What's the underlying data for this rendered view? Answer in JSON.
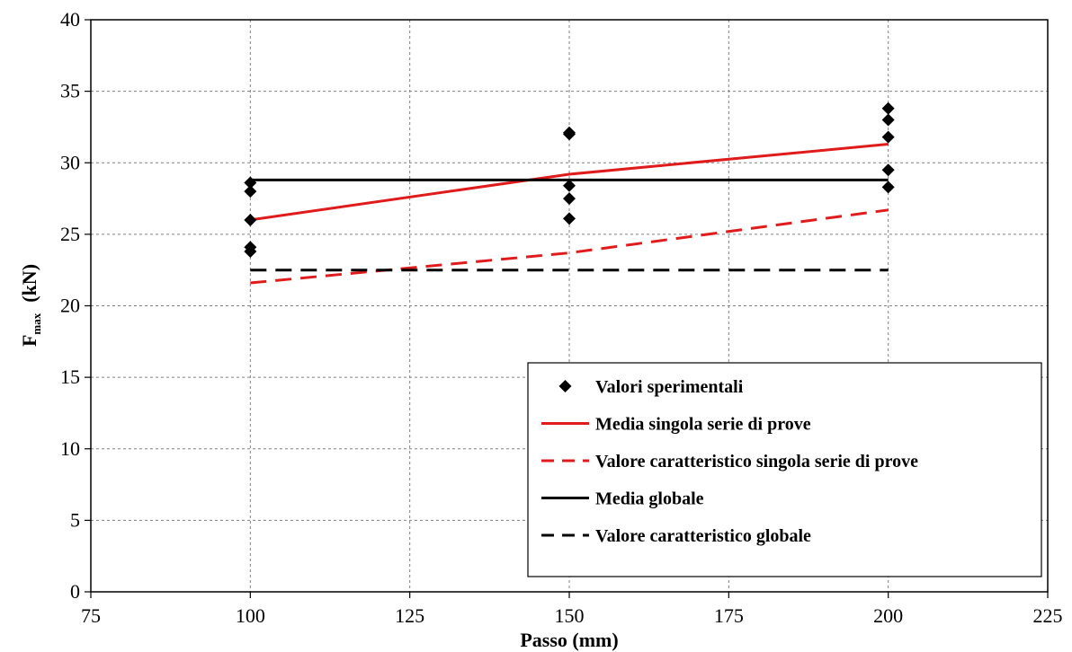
{
  "chart_data": {
    "type": "scatter",
    "title": "",
    "xlabel": "Passo (mm)",
    "ylabel_main": "F",
    "ylabel_sub": "max",
    "ylabel_unit": "(kN)",
    "xlim": [
      75,
      225
    ],
    "ylim": [
      0,
      40
    ],
    "xticks": [
      "75",
      "100",
      "125",
      "150",
      "175",
      "200",
      "225"
    ],
    "yticks": [
      "0",
      "5",
      "10",
      "15",
      "20",
      "25",
      "30",
      "35",
      "40"
    ],
    "grid": true,
    "legend_position": "bottom-right",
    "series": [
      {
        "name": "Valori sperimentali",
        "kind": "markers",
        "marker": "diamond",
        "color": "#000000",
        "points": [
          [
            100,
            23.8
          ],
          [
            100,
            24.1
          ],
          [
            100,
            26.0
          ],
          [
            100,
            28.0
          ],
          [
            100,
            28.6
          ],
          [
            150,
            26.1
          ],
          [
            150,
            27.5
          ],
          [
            150,
            28.4
          ],
          [
            150,
            32.0
          ],
          [
            150,
            32.1
          ],
          [
            200,
            28.3
          ],
          [
            200,
            29.5
          ],
          [
            200,
            31.8
          ],
          [
            200,
            33.0
          ],
          [
            200,
            33.8
          ]
        ]
      },
      {
        "name": "Media singola serie di prove",
        "kind": "line",
        "dash": "solid",
        "color": "#e01b1b",
        "points": [
          [
            100,
            26.0
          ],
          [
            150,
            29.2
          ],
          [
            200,
            31.3
          ]
        ]
      },
      {
        "name": "Valore caratteristico singola serie di prove",
        "kind": "line",
        "dash": "dashed",
        "color": "#e01b1b",
        "points": [
          [
            100,
            21.6
          ],
          [
            150,
            23.7
          ],
          [
            200,
            26.7
          ]
        ]
      },
      {
        "name": "Media globale",
        "kind": "line",
        "dash": "solid",
        "color": "#000000",
        "points": [
          [
            100,
            28.8
          ],
          [
            200,
            28.8
          ]
        ]
      },
      {
        "name": "Valore caratteristico globale",
        "kind": "line",
        "dash": "dashed",
        "color": "#000000",
        "points": [
          [
            100,
            22.5
          ],
          [
            200,
            22.5
          ]
        ]
      }
    ]
  }
}
